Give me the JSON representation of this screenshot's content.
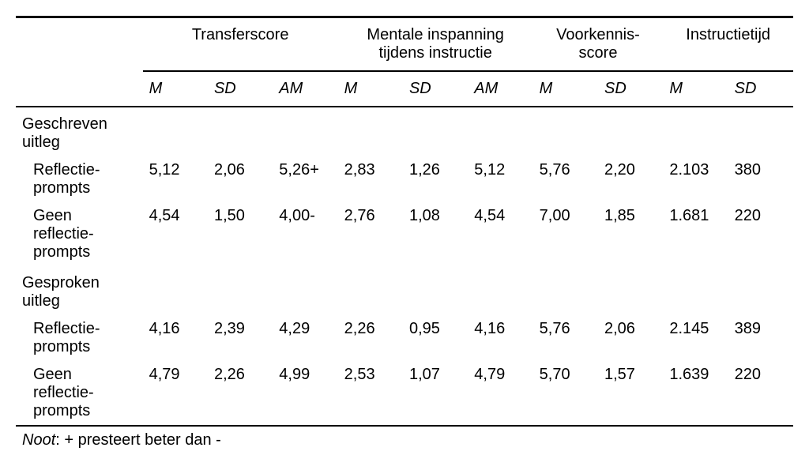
{
  "table": {
    "type": "table",
    "background_color": "#ffffff",
    "text_color": "#000000",
    "rule_color": "#000000",
    "font_family": "Arial",
    "font_size_pt": 15,
    "column_groups": [
      {
        "label": "Transferscore",
        "sub": [
          "M",
          "SD",
          "AM"
        ]
      },
      {
        "label": "Mentale inspanning tijdens instructie",
        "sub": [
          "M",
          "SD",
          "AM"
        ]
      },
      {
        "label": "Voorkennis- score",
        "sub": [
          "M",
          "SD"
        ]
      },
      {
        "label": "Instructietijd",
        "sub": [
          "M",
          "SD"
        ]
      }
    ],
    "sections": [
      {
        "label": "Geschreven uitleg",
        "rows": [
          {
            "label": "Reflectie- prompts",
            "cells": [
              "5,12",
              "2,06",
              "5,26+",
              "2,83",
              "1,26",
              "5,12",
              "5,76",
              "2,20",
              "2.103",
              "380"
            ]
          },
          {
            "label": "Geen reflectie- prompts",
            "cells": [
              "4,54",
              "1,50",
              "4,00-",
              "2,76",
              "1,08",
              "4,54",
              "7,00",
              "1,85",
              "1.681",
              "220"
            ]
          }
        ]
      },
      {
        "label": "Gesproken uitleg",
        "rows": [
          {
            "label": "Reflectie- prompts",
            "cells": [
              "4,16",
              "2,39",
              "4,29",
              "2,26",
              "0,95",
              "4,16",
              "5,76",
              "2,06",
              "2.145",
              "389"
            ]
          },
          {
            "label": "Geen reflectie- prompts",
            "cells": [
              "4,79",
              "2,26",
              "4,99",
              "2,53",
              "1,07",
              "4,79",
              "5,70",
              "1,57",
              "1.639",
              "220"
            ]
          }
        ]
      }
    ],
    "note_label": "Noot",
    "note_text": ": + presteert beter dan -"
  }
}
